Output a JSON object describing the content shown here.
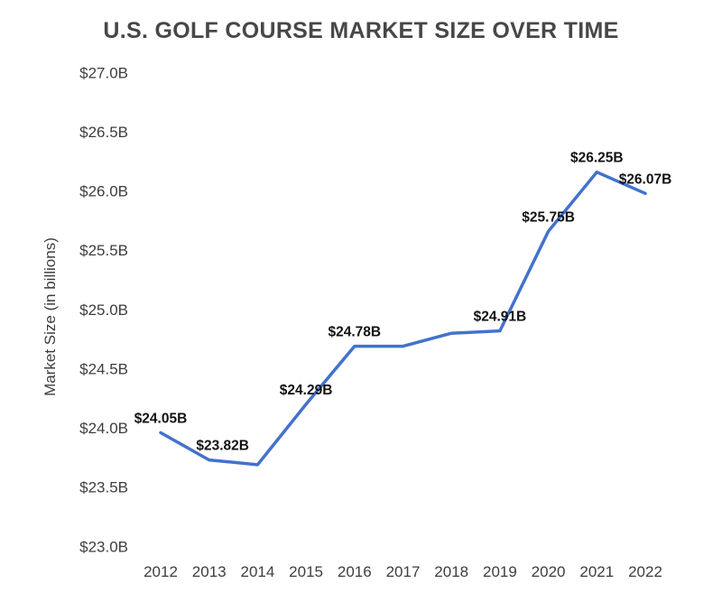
{
  "chart_data": {
    "type": "line",
    "title": "U.S. GOLF COURSE MARKET SIZE OVER TIME",
    "ylabel": "Market Size (in billions)",
    "xlabel": "",
    "categories": [
      "2012",
      "2013",
      "2014",
      "2015",
      "2016",
      "2017",
      "2018",
      "2019",
      "2020",
      "2021",
      "2022"
    ],
    "series": [
      {
        "name": "U.S. golf course market size",
        "values": [
          24.05,
          23.82,
          23.78,
          24.29,
          24.78,
          24.78,
          24.89,
          24.91,
          25.75,
          26.25,
          26.07
        ]
      }
    ],
    "point_labels": [
      "$24.05B",
      "$23.82B",
      null,
      "$24.29B",
      "$24.78B",
      null,
      null,
      "$24.91B",
      "$25.75B",
      "$26.25B",
      "$26.07B"
    ],
    "y_ticks": [
      {
        "value": 27.0,
        "label": "$27.0B"
      },
      {
        "value": 26.5,
        "label": "$26.5B"
      },
      {
        "value": 26.0,
        "label": "$26.0B"
      },
      {
        "value": 25.5,
        "label": "$25.5B"
      },
      {
        "value": 25.0,
        "label": "$25.0B"
      },
      {
        "value": 24.5,
        "label": "$24.5B"
      },
      {
        "value": 24.0,
        "label": "$24.0B"
      },
      {
        "value": 23.5,
        "label": "$23.5B"
      },
      {
        "value": 23.0,
        "label": "$23.0B"
      }
    ],
    "ylim": [
      23.0,
      27.0
    ],
    "grid": false,
    "legend": "none",
    "colors": {
      "line": "#4372cd",
      "title_text": "#474747",
      "axis_text": "#3e3e3e",
      "point_label_text": "#111111",
      "background": "#ffffff"
    }
  }
}
